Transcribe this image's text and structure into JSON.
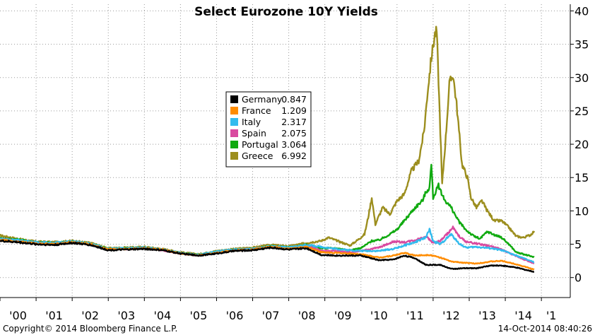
{
  "chart_data": {
    "type": "line",
    "title": "Select Eurozone 10Y Yields",
    "ylim": [
      -3,
      41
    ],
    "yticks": [
      0,
      5,
      10,
      15,
      20,
      25,
      30,
      35,
      40
    ],
    "xticks": [
      "'00",
      "'01",
      "'02",
      "'03",
      "'04",
      "'05",
      "'06",
      "'07",
      "'08",
      "'09",
      "'10",
      "'11",
      "'12",
      "'13",
      "'14",
      "'1"
    ],
    "xlim": [
      2000,
      2015.8
    ],
    "grid": true,
    "legend_position": "upper-left-center",
    "series": [
      {
        "name": "Germany",
        "last": "0.847",
        "color": "#000000",
        "points": [
          [
            2000,
            5.5
          ],
          [
            2000.5,
            5.3
          ],
          [
            2001,
            5.0
          ],
          [
            2001.5,
            4.9
          ],
          [
            2002,
            5.2
          ],
          [
            2002.5,
            4.9
          ],
          [
            2003,
            4.1
          ],
          [
            2003.5,
            4.2
          ],
          [
            2004,
            4.3
          ],
          [
            2004.5,
            4.1
          ],
          [
            2005,
            3.6
          ],
          [
            2005.5,
            3.3
          ],
          [
            2006,
            3.6
          ],
          [
            2006.5,
            4.0
          ],
          [
            2007,
            4.1
          ],
          [
            2007.5,
            4.5
          ],
          [
            2008,
            4.2
          ],
          [
            2008.5,
            4.4
          ],
          [
            2008.9,
            3.4
          ],
          [
            2009.3,
            3.3
          ],
          [
            2009.7,
            3.3
          ],
          [
            2010,
            3.3
          ],
          [
            2010.5,
            2.6
          ],
          [
            2010.9,
            2.7
          ],
          [
            2011.2,
            3.3
          ],
          [
            2011.5,
            2.9
          ],
          [
            2011.8,
            1.9
          ],
          [
            2012.2,
            1.9
          ],
          [
            2012.5,
            1.3
          ],
          [
            2012.9,
            1.4
          ],
          [
            2013.2,
            1.4
          ],
          [
            2013.6,
            1.8
          ],
          [
            2013.9,
            1.8
          ],
          [
            2014.3,
            1.5
          ],
          [
            2014.8,
            0.85
          ]
        ]
      },
      {
        "name": "France",
        "last": "1.209",
        "color": "#ff8c00",
        "points": [
          [
            2000,
            5.6
          ],
          [
            2000.5,
            5.4
          ],
          [
            2001,
            5.1
          ],
          [
            2001.5,
            5.0
          ],
          [
            2002,
            5.3
          ],
          [
            2002.5,
            5.0
          ],
          [
            2003,
            4.2
          ],
          [
            2003.5,
            4.3
          ],
          [
            2004,
            4.4
          ],
          [
            2004.5,
            4.2
          ],
          [
            2005,
            3.6
          ],
          [
            2005.5,
            3.3
          ],
          [
            2006,
            3.7
          ],
          [
            2006.5,
            4.1
          ],
          [
            2007,
            4.2
          ],
          [
            2007.5,
            4.6
          ],
          [
            2008,
            4.3
          ],
          [
            2008.5,
            4.6
          ],
          [
            2008.9,
            3.8
          ],
          [
            2009.3,
            3.7
          ],
          [
            2009.7,
            3.6
          ],
          [
            2010,
            3.5
          ],
          [
            2010.5,
            3.0
          ],
          [
            2010.9,
            3.3
          ],
          [
            2011.2,
            3.7
          ],
          [
            2011.5,
            3.3
          ],
          [
            2011.9,
            3.4
          ],
          [
            2012.2,
            3.0
          ],
          [
            2012.5,
            2.4
          ],
          [
            2012.9,
            2.2
          ],
          [
            2013.2,
            2.1
          ],
          [
            2013.6,
            2.4
          ],
          [
            2013.9,
            2.5
          ],
          [
            2014.3,
            2.0
          ],
          [
            2014.8,
            1.2
          ]
        ]
      },
      {
        "name": "Italy",
        "last": "2.317",
        "color": "#33bbee",
        "points": [
          [
            2000,
            5.8
          ],
          [
            2000.5,
            5.6
          ],
          [
            2001,
            5.3
          ],
          [
            2001.5,
            5.2
          ],
          [
            2002,
            5.4
          ],
          [
            2002.5,
            5.1
          ],
          [
            2003,
            4.3
          ],
          [
            2003.5,
            4.4
          ],
          [
            2004,
            4.5
          ],
          [
            2004.5,
            4.2
          ],
          [
            2005,
            3.7
          ],
          [
            2005.5,
            3.4
          ],
          [
            2006,
            3.9
          ],
          [
            2006.5,
            4.2
          ],
          [
            2007,
            4.3
          ],
          [
            2007.5,
            4.7
          ],
          [
            2008,
            4.5
          ],
          [
            2008.5,
            4.9
          ],
          [
            2008.9,
            4.6
          ],
          [
            2009.3,
            4.3
          ],
          [
            2009.7,
            4.1
          ],
          [
            2010,
            4.0
          ],
          [
            2010.5,
            4.0
          ],
          [
            2010.9,
            4.3
          ],
          [
            2011.2,
            4.8
          ],
          [
            2011.5,
            5.3
          ],
          [
            2011.8,
            6.0
          ],
          [
            2011.9,
            7.2
          ],
          [
            2012.0,
            5.5
          ],
          [
            2012.2,
            5.0
          ],
          [
            2012.4,
            6.0
          ],
          [
            2012.5,
            6.5
          ],
          [
            2012.7,
            5.2
          ],
          [
            2012.9,
            4.5
          ],
          [
            2013.2,
            4.6
          ],
          [
            2013.6,
            4.4
          ],
          [
            2013.9,
            4.1
          ],
          [
            2014.3,
            3.3
          ],
          [
            2014.8,
            2.3
          ]
        ]
      },
      {
        "name": "Spain",
        "last": "2.075",
        "color": "#d94aa0",
        "points": [
          [
            2000,
            5.8
          ],
          [
            2000.5,
            5.5
          ],
          [
            2001,
            5.2
          ],
          [
            2001.5,
            5.1
          ],
          [
            2002,
            5.3
          ],
          [
            2002.5,
            5.0
          ],
          [
            2003,
            4.2
          ],
          [
            2003.5,
            4.3
          ],
          [
            2004,
            4.4
          ],
          [
            2004.5,
            4.1
          ],
          [
            2005,
            3.6
          ],
          [
            2005.5,
            3.3
          ],
          [
            2006,
            3.8
          ],
          [
            2006.5,
            4.1
          ],
          [
            2007,
            4.3
          ],
          [
            2007.5,
            4.6
          ],
          [
            2008,
            4.4
          ],
          [
            2008.5,
            4.8
          ],
          [
            2008.9,
            4.0
          ],
          [
            2009.3,
            4.0
          ],
          [
            2009.7,
            3.8
          ],
          [
            2010,
            4.0
          ],
          [
            2010.5,
            4.5
          ],
          [
            2010.9,
            5.4
          ],
          [
            2011.2,
            5.3
          ],
          [
            2011.5,
            5.6
          ],
          [
            2011.8,
            6.2
          ],
          [
            2012.0,
            5.2
          ],
          [
            2012.2,
            5.5
          ],
          [
            2012.4,
            6.6
          ],
          [
            2012.55,
            7.5
          ],
          [
            2012.7,
            6.3
          ],
          [
            2012.9,
            5.4
          ],
          [
            2013.2,
            5.1
          ],
          [
            2013.6,
            4.7
          ],
          [
            2013.9,
            4.2
          ],
          [
            2014.3,
            3.2
          ],
          [
            2014.8,
            2.1
          ]
        ]
      },
      {
        "name": "Portugal",
        "last": "3.064",
        "color": "#10aa10",
        "points": [
          [
            2000,
            5.9
          ],
          [
            2000.5,
            5.7
          ],
          [
            2001,
            5.3
          ],
          [
            2001.5,
            5.2
          ],
          [
            2002,
            5.4
          ],
          [
            2002.5,
            5.1
          ],
          [
            2003,
            4.3
          ],
          [
            2003.5,
            4.4
          ],
          [
            2004,
            4.5
          ],
          [
            2004.5,
            4.2
          ],
          [
            2005,
            3.7
          ],
          [
            2005.5,
            3.4
          ],
          [
            2006,
            3.9
          ],
          [
            2006.5,
            4.2
          ],
          [
            2007,
            4.3
          ],
          [
            2007.5,
            4.7
          ],
          [
            2008,
            4.5
          ],
          [
            2008.5,
            4.9
          ],
          [
            2008.9,
            4.4
          ],
          [
            2009.3,
            4.4
          ],
          [
            2009.7,
            4.1
          ],
          [
            2010,
            4.4
          ],
          [
            2010.3,
            5.5
          ],
          [
            2010.5,
            5.6
          ],
          [
            2010.8,
            6.5
          ],
          [
            2011.0,
            7.2
          ],
          [
            2011.2,
            8.5
          ],
          [
            2011.5,
            10.5
          ],
          [
            2011.7,
            11.5
          ],
          [
            2011.8,
            12.8
          ],
          [
            2011.9,
            13.5
          ],
          [
            2011.95,
            17.0
          ],
          [
            2012.0,
            12.0
          ],
          [
            2012.15,
            13.8
          ],
          [
            2012.3,
            11.8
          ],
          [
            2012.5,
            10.5
          ],
          [
            2012.7,
            8.5
          ],
          [
            2012.9,
            7.2
          ],
          [
            2013.1,
            6.3
          ],
          [
            2013.3,
            5.8
          ],
          [
            2013.5,
            6.9
          ],
          [
            2013.7,
            6.4
          ],
          [
            2013.9,
            6.0
          ],
          [
            2014.1,
            5.0
          ],
          [
            2014.3,
            3.8
          ],
          [
            2014.5,
            3.5
          ],
          [
            2014.8,
            3.06
          ]
        ]
      },
      {
        "name": "Greece",
        "last": "6.992",
        "color": "#9c8e1e",
        "points": [
          [
            2000,
            6.3
          ],
          [
            2000.5,
            5.8
          ],
          [
            2001,
            5.4
          ],
          [
            2001.5,
            5.3
          ],
          [
            2002,
            5.5
          ],
          [
            2002.5,
            5.2
          ],
          [
            2003,
            4.4
          ],
          [
            2003.5,
            4.5
          ],
          [
            2004,
            4.6
          ],
          [
            2004.5,
            4.3
          ],
          [
            2005,
            3.8
          ],
          [
            2005.5,
            3.5
          ],
          [
            2006,
            4.0
          ],
          [
            2006.5,
            4.3
          ],
          [
            2007,
            4.5
          ],
          [
            2007.5,
            4.9
          ],
          [
            2008,
            4.7
          ],
          [
            2008.5,
            5.2
          ],
          [
            2008.9,
            5.5
          ],
          [
            2009.1,
            6.0
          ],
          [
            2009.3,
            5.6
          ],
          [
            2009.7,
            4.8
          ],
          [
            2009.95,
            5.8
          ],
          [
            2010.1,
            6.5
          ],
          [
            2010.2,
            9.0
          ],
          [
            2010.3,
            12.0
          ],
          [
            2010.4,
            8.0
          ],
          [
            2010.6,
            10.5
          ],
          [
            2010.8,
            9.5
          ],
          [
            2011.0,
            11.5
          ],
          [
            2011.2,
            12.5
          ],
          [
            2011.4,
            16.0
          ],
          [
            2011.6,
            17.5
          ],
          [
            2011.75,
            22.0
          ],
          [
            2011.85,
            28.0
          ],
          [
            2011.95,
            33.0
          ],
          [
            2012.05,
            36.5
          ],
          [
            2012.1,
            37.0
          ],
          [
            2012.2,
            22.0
          ],
          [
            2012.25,
            14.0
          ],
          [
            2012.35,
            21.0
          ],
          [
            2012.45,
            29.0
          ],
          [
            2012.55,
            30.5
          ],
          [
            2012.65,
            26.0
          ],
          [
            2012.8,
            17.0
          ],
          [
            2012.95,
            15.0
          ],
          [
            2013.05,
            12.0
          ],
          [
            2013.2,
            10.5
          ],
          [
            2013.35,
            11.5
          ],
          [
            2013.5,
            10.0
          ],
          [
            2013.7,
            8.5
          ],
          [
            2013.9,
            8.5
          ],
          [
            2014.1,
            7.5
          ],
          [
            2014.3,
            6.2
          ],
          [
            2014.5,
            6.0
          ],
          [
            2014.7,
            6.4
          ],
          [
            2014.8,
            6.99
          ]
        ]
      }
    ]
  },
  "footer": {
    "copyright": "Copyright© 2014 Bloomberg Finance L.P.",
    "timestamp": "14-Oct-2014 08:40:26"
  }
}
